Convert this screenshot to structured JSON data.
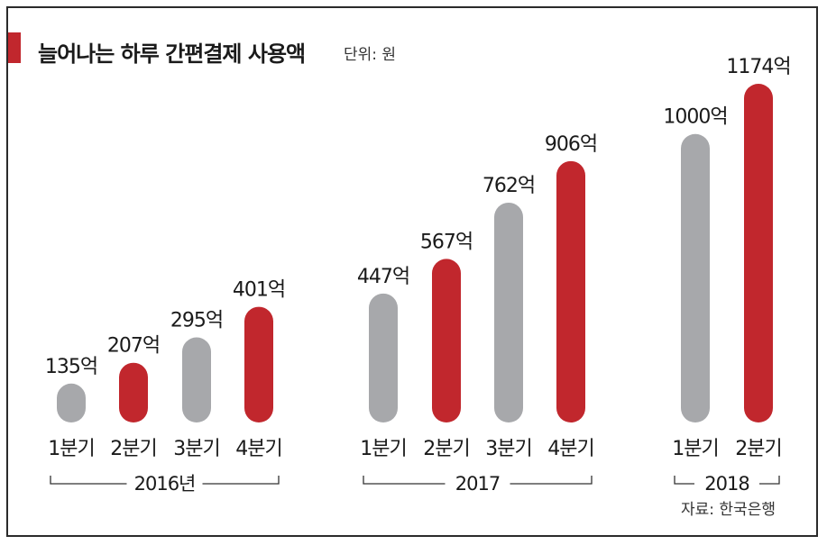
{
  "title": "늘어나는 하루 간편결제 사용액",
  "unit": "단위: 원",
  "source": "자료: 한국은행",
  "colors": {
    "gray": "#a7a8ab",
    "red": "#c1272d",
    "accent": "#c1272d"
  },
  "chart_data": {
    "type": "bar",
    "title": "늘어나는 하루 간편결제 사용액",
    "unit": "단위: 원",
    "groups": [
      {
        "label": "2016년",
        "categories": [
          "1분기",
          "2분기",
          "3분기",
          "4분기"
        ],
        "values": [
          135,
          207,
          295,
          401
        ],
        "labels": [
          "135억",
          "207억",
          "295억",
          "401억"
        ]
      },
      {
        "label": "2017",
        "categories": [
          "1분기",
          "2분기",
          "3분기",
          "4분기"
        ],
        "values": [
          447,
          567,
          762,
          906
        ],
        "labels": [
          "447억",
          "567억",
          "762억",
          "906억"
        ]
      },
      {
        "label": "2018",
        "categories": [
          "1분기",
          "2분기"
        ],
        "values": [
          1000,
          1174
        ],
        "labels": [
          "1000억",
          "1174억"
        ]
      }
    ],
    "bar_colors": [
      "gray",
      "red",
      "gray",
      "red"
    ],
    "grid": false
  }
}
